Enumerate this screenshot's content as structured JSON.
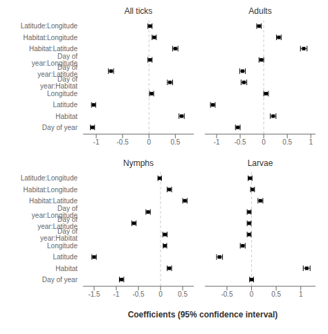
{
  "xlabel": "Coefficients (95% confidence interval)",
  "chart_data": [
    {
      "type": "scatter",
      "title": "All ticks",
      "categories": [
        "Latitude:Longitude",
        "Habitat:Longitude",
        "Habitat:Latitude",
        "Day of year:Longitude",
        "Day of year:Latitude",
        "Day of year:Habitat",
        "Longitude",
        "Latitude",
        "Habitat",
        "Day of year"
      ],
      "values": [
        0.02,
        0.1,
        0.5,
        0.02,
        -0.72,
        0.4,
        0.05,
        -1.05,
        0.62,
        -1.07
      ],
      "errors": [
        0.04,
        0.04,
        0.05,
        0.04,
        0.05,
        0.05,
        0.04,
        0.04,
        0.05,
        0.04
      ],
      "xlim": [
        -1.25,
        0.85
      ],
      "xticks": [
        -1,
        -0.5,
        0,
        0.5
      ],
      "color": "black",
      "marker": "square",
      "grid": false
    },
    {
      "type": "scatter",
      "title": "Adults",
      "categories": [
        "Latitude:Longitude",
        "Habitat:Longitude",
        "Habitat:Latitude",
        "Day of year:Longitude",
        "Day of year:Latitude",
        "Day of year:Habitat",
        "Longitude",
        "Latitude",
        "Habitat",
        "Day of year"
      ],
      "values": [
        -0.1,
        0.32,
        0.85,
        -0.05,
        -0.45,
        -0.42,
        0.05,
        -1.08,
        0.2,
        -0.55
      ],
      "errors": [
        0.05,
        0.05,
        0.07,
        0.05,
        0.06,
        0.06,
        0.05,
        0.05,
        0.06,
        0.05
      ],
      "xlim": [
        -1.25,
        1.1
      ],
      "xticks": [
        -1,
        -0.5,
        0,
        0.5,
        1
      ],
      "color": "black",
      "marker": "square",
      "grid": false,
      "tick_labels": "x"
    },
    {
      "type": "scatter",
      "title": "Nymphs",
      "categories": [
        "Latitude:Longitude",
        "Habitat:Longitude",
        "Habitat:Latitude",
        "Day of year:Longitude",
        "Day of year:Latitude",
        "Day of year:Habitat",
        "Longitude",
        "Latitude",
        "Habitat",
        "Day of year"
      ],
      "values": [
        -0.02,
        0.2,
        0.55,
        -0.28,
        -0.6,
        0.1,
        0.1,
        -1.5,
        0.2,
        -0.88
      ],
      "errors": [
        0.04,
        0.05,
        0.05,
        0.05,
        0.05,
        0.05,
        0.04,
        0.05,
        0.05,
        0.05
      ],
      "xlim": [
        -1.75,
        0.75
      ],
      "xticks": [
        -1.5,
        -1,
        -0.5,
        0,
        0.5
      ],
      "color": "black",
      "marker": "square",
      "grid": false
    },
    {
      "type": "scatter",
      "title": "Larvae",
      "categories": [
        "Latitude:Longitude",
        "Habitat:Longitude",
        "Habitat:Latitude",
        "Day of year:Longitude",
        "Day of year:Latitude",
        "Day of year:Habitat",
        "Longitude",
        "Latitude",
        "Habitat",
        "Day of year"
      ],
      "values": [
        -0.03,
        0.02,
        0.18,
        -0.05,
        -0.05,
        -0.05,
        -0.18,
        -0.65,
        1.12,
        0.0
      ],
      "errors": [
        0.04,
        0.04,
        0.05,
        0.04,
        0.04,
        0.04,
        0.05,
        0.06,
        0.07,
        0.04
      ],
      "xlim": [
        -0.95,
        1.3
      ],
      "xticks": [
        -0.5,
        0,
        0.5,
        1
      ],
      "color": "black",
      "marker": "square",
      "grid": false,
      "tick_labels": "x"
    }
  ]
}
